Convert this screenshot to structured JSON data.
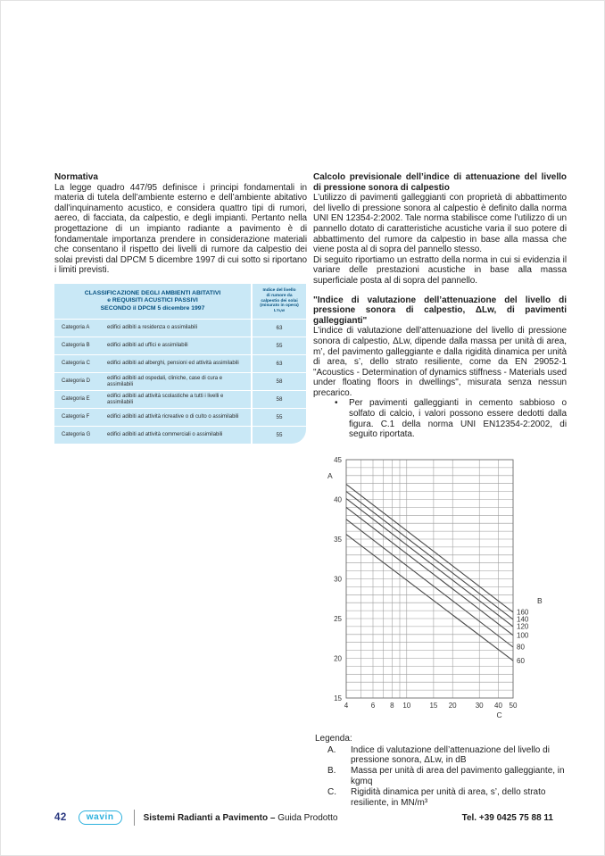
{
  "colors": {
    "table_bg": "#c9e8f6",
    "table_header_text": "#06507f",
    "brand_cyan": "#2bb0dd",
    "page_number_blue": "#27357e",
    "chart_grid": "#9a9a9a",
    "chart_line": "#4a4a4a"
  },
  "left": {
    "heading": "Normativa",
    "body": "La legge quadro 447/95 definisce i principi fondamentali in materia di tutela dell’ambiente esterno e dell’ambiente abitativo dall’inquinamento acustico, e considera quattro tipi di rumori, aereo, di facciata, da calpestio, e degli impianti. Pertanto nella progettazione di un impianto radiante a pavimento è di fondamentale importanza prendere in considerazione materiali che consentano il rispetto dei livelli di rumore da calpestio dei solai previsti dal DPCM 5 dicembre 1997 di cui sotto si riportano i limiti previsti.",
    "table": {
      "title_lines": [
        "CLASSIFICAZIONE DEGLI AMBIENTI ABITATIVI",
        "e REQUISITI ACUSTICI PASSIVI",
        "SECONDO il DPCM 5 dicembre 1997"
      ],
      "value_header_lines": [
        "Indice del livello",
        "di rumore da",
        "calpestio dei solai",
        "(misurato in opera)",
        "L’n,w"
      ],
      "rows": [
        {
          "category": "Categoria A",
          "description": "edifici adibiti a residenza o assimilabili",
          "value": "63"
        },
        {
          "category": "Categoria B",
          "description": "edifici adibiti ad uffici e assimilabili",
          "value": "55"
        },
        {
          "category": "Categoria C",
          "description": "edifici adibiti ad alberghi, pensioni ed attività assimilabili",
          "value": "63"
        },
        {
          "category": "Categoria D",
          "description": "edifici adibiti ad ospedali, cliniche, case di cura e assimilabili",
          "value": "58"
        },
        {
          "category": "Categoria E",
          "description": "edifici adibiti ad attività scolastiche a tutti i livelli e assimilabili",
          "value": "58"
        },
        {
          "category": "Categoria F",
          "description": "edifici adibiti ad attività ricreative o di culto o assimilabili",
          "value": "55"
        },
        {
          "category": "Categoria G",
          "description": "edifici adibiti ad attività commerciali o assimilabili",
          "value": "55"
        }
      ]
    }
  },
  "right": {
    "heading": "Calcolo previsionale dell’indice di attenuazione del livello di pressione sonora di calpestio",
    "para1": "L’utilizzo di pavimenti galleggianti con proprietà di abbattimento del livello di pressione sonora al calpestio è definito dalla norma UNI EN 12354-2:2002. Tale norma stabilisce come l’utilizzo di un pannello dotato di caratteristiche acustiche varia il suo potere di abbattimento del rumore da calpestio in base alla massa che viene posta al di sopra del pannello stesso.",
    "para2": "Di seguito riportiamo un estratto della norma in cui si evidenzia il variare delle prestazioni acustiche in base alla massa superficiale posta al di sopra del pannello.",
    "subheading": "\"Indice di valutazione dell’attenuazione del livello di pressione sonora di calpestio, ΔLw, di pavimenti galleggianti\"",
    "para3": "L’indice di valutazione dell’attenuazione del livello di pressione sonora di calpestio, ΔLw, dipende dalla massa per unità di area, m’, del pavimento galleggiante e dalla rigidità dinamica per unità di area, s’, dello strato resiliente, come da EN 29052-1 \"Acoustics - Determination of dynamics stiffness - Materials used under floating floors in dwellings\", misurata senza nessun precarico.",
    "bullet_marker": "•",
    "bullet": "Per pavimenti galleggianti in cemento sabbioso o solfato di calcio, i valori possono essere dedotti dalla figura. C.1 della norma UNI EN12354-2:2002, di seguito riportata.",
    "legend_title": "Legenda:",
    "legend_items": [
      {
        "key": "A.",
        "text": "Indice di valutazione dell’attenuazione del livello di pressione sonora, ΔLw, in dB"
      },
      {
        "key": "B.",
        "text": "Massa per unità di area del pavimento galleggiante, in kgmq"
      },
      {
        "key": "C.",
        "text": "Rigidità dinamica per unità di area, s’, dello strato resiliente, in MN/m³"
      }
    ]
  },
  "footer": {
    "page_number": "42",
    "brand": "wavin",
    "doc_title_bold": "Sistemi Radianti a Pavimento –",
    "doc_title_regular": "Guida Prodotto",
    "phone": "Tel. +39 0425 75 88 11"
  },
  "chart_data": {
    "type": "line",
    "x_scale": "log",
    "x_range": [
      4,
      50
    ],
    "y_range": [
      15,
      45
    ],
    "x_gridlines": [
      4,
      5,
      6,
      7,
      8,
      9,
      10,
      15,
      20,
      30,
      40,
      50
    ],
    "x_tick_labels": [
      4,
      6,
      8,
      10,
      15,
      20,
      30,
      40,
      50
    ],
    "y_tick_labels": [
      15,
      20,
      25,
      30,
      35,
      40,
      45
    ],
    "y_minor_step": 1,
    "axis_labels": {
      "y": "A",
      "x": "C",
      "series": "B"
    },
    "series": [
      {
        "name": "160",
        "x": [
          4,
          50
        ],
        "y": [
          41.9,
          25.8
        ]
      },
      {
        "name": "140",
        "x": [
          4,
          50
        ],
        "y": [
          41.0,
          24.9
        ]
      },
      {
        "name": "120",
        "x": [
          4,
          50
        ],
        "y": [
          40.1,
          24.0
        ]
      },
      {
        "name": "100",
        "x": [
          4,
          50
        ],
        "y": [
          39.0,
          22.9
        ]
      },
      {
        "name": "80",
        "x": [
          4,
          50
        ],
        "y": [
          37.5,
          21.4
        ]
      },
      {
        "name": "60",
        "x": [
          4,
          50
        ],
        "y": [
          35.6,
          19.7
        ]
      }
    ],
    "grid": true,
    "legend_position": "right-of-lines"
  }
}
